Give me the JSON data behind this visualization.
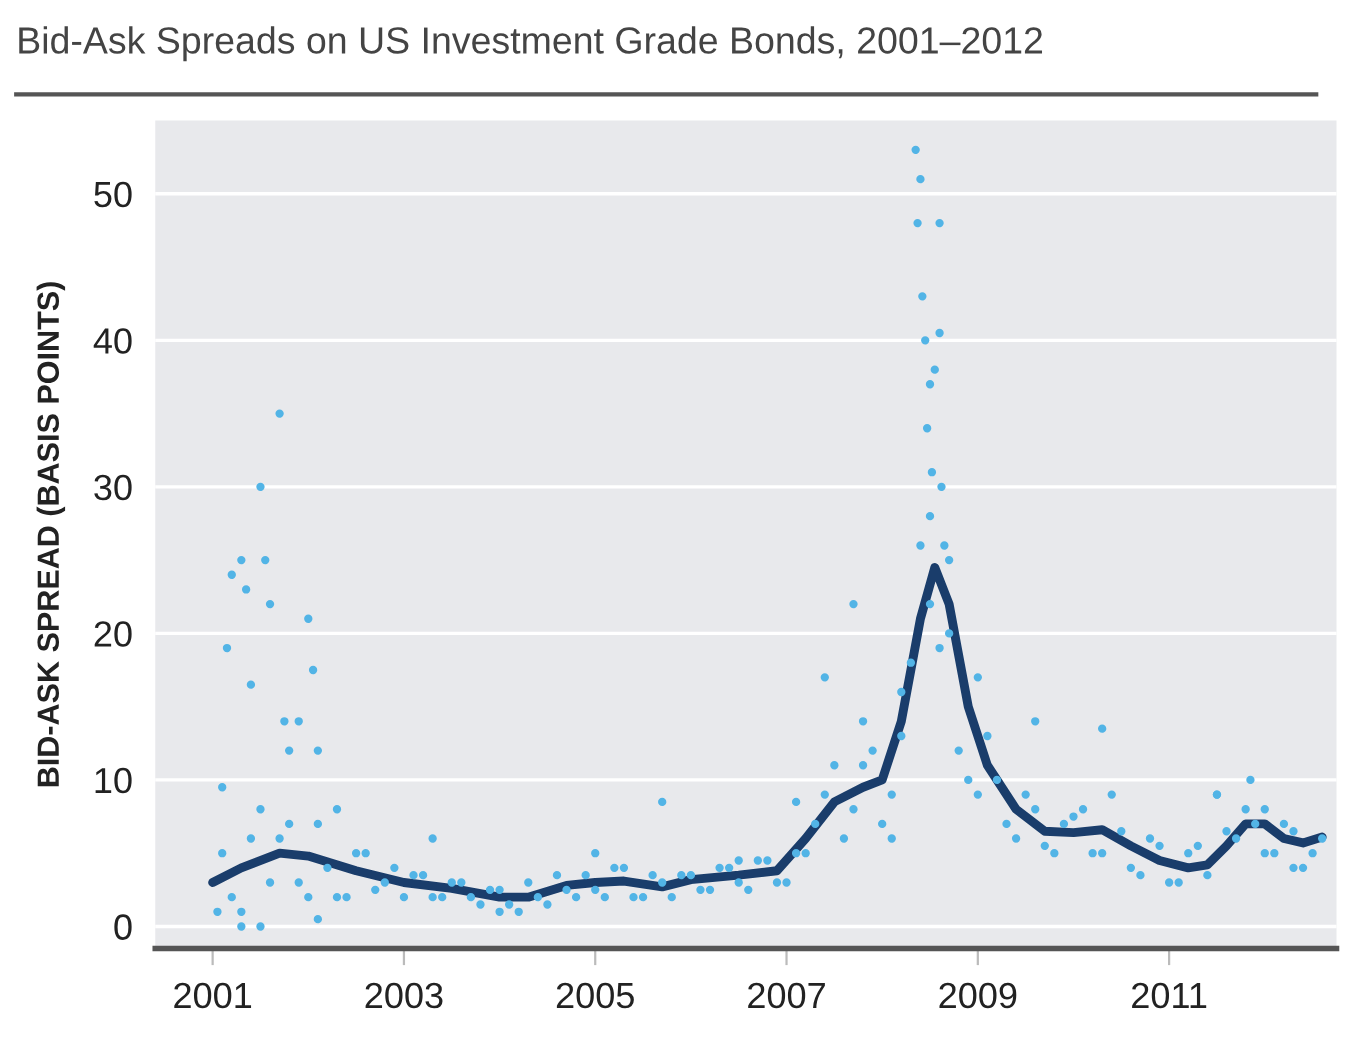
{
  "chart_data": {
    "type": "scatter",
    "title": "Bid-Ask Spreads on US Investment Grade Bonds, 2001–2012",
    "ylabel": "BID-ASK SPREAD (BASIS POINTS)",
    "xlim": [
      2000.4,
      2012.75
    ],
    "ylim": [
      -1.5,
      55
    ],
    "xticks": [
      2001,
      2003,
      2005,
      2007,
      2009,
      2011
    ],
    "yticks": [
      0,
      10,
      20,
      30,
      40,
      50
    ],
    "grid": "y",
    "series": [
      {
        "color": "#52b4e6",
        "marker": "circle",
        "x": [
          2001.1,
          2001.15,
          2001.2,
          2001.3,
          2001.35,
          2001.4,
          2001.5,
          2001.55,
          2001.6,
          2001.7,
          2001.75,
          2001.8,
          2001.9,
          2002.0,
          2002.05,
          2002.1,
          2002.3,
          2003.3,
          2005.0,
          2005.7,
          2006.5,
          2007.1,
          2007.4,
          2007.7,
          2007.8,
          2008.35,
          2008.4,
          2008.37,
          2008.6,
          2008.42,
          2008.45,
          2008.55,
          2008.6,
          2008.5,
          2008.47,
          2008.52,
          2008.62,
          2008.5,
          2008.65,
          2008.7,
          2009.6,
          2010.3,
          2011.5,
          2011.85,
          2012.0,
          2008.2,
          2008.1,
          2009.0,
          2001.3,
          2001.5,
          2002.1,
          2004.0,
          2012.3,
          2001.05,
          2001.2,
          2001.4,
          2001.6,
          2001.8,
          2002.0,
          2002.2,
          2002.4,
          2002.6,
          2002.8,
          2003.0,
          2003.2,
          2003.4,
          2003.6,
          2003.8,
          2004.0,
          2004.2,
          2004.4,
          2004.6,
          2004.8,
          2005.0,
          2005.2,
          2005.4,
          2005.6,
          2005.8,
          2006.0,
          2006.2,
          2006.4,
          2006.6,
          2006.8,
          2007.0,
          2007.2,
          2007.4,
          2007.6,
          2007.8,
          2008.0,
          2008.2,
          2008.4,
          2008.6,
          2008.8,
          2009.0,
          2009.2,
          2009.4,
          2009.6,
          2009.8,
          2010.0,
          2010.2,
          2010.4,
          2010.6,
          2010.8,
          2011.0,
          2011.2,
          2011.4,
          2011.6,
          2011.8,
          2012.0,
          2012.2,
          2012.4,
          2012.6,
          2001.1,
          2001.3,
          2001.5,
          2001.7,
          2001.9,
          2002.1,
          2002.3,
          2002.5,
          2002.7,
          2002.9,
          2003.1,
          2003.3,
          2003.5,
          2003.7,
          2003.9,
          2004.1,
          2004.3,
          2004.5,
          2004.7,
          2004.9,
          2005.1,
          2005.3,
          2005.5,
          2005.7,
          2005.9,
          2006.1,
          2006.3,
          2006.5,
          2006.7,
          2006.9,
          2007.1,
          2007.3,
          2007.5,
          2007.7,
          2007.9,
          2008.1,
          2008.3,
          2008.5,
          2008.7,
          2008.9,
          2009.1,
          2009.3,
          2009.5,
          2009.7,
          2009.9,
          2010.1,
          2010.3,
          2010.5,
          2010.7,
          2010.9,
          2011.1,
          2011.3,
          2011.5,
          2011.7,
          2011.9,
          2012.1,
          2012.3,
          2012.5
        ],
        "values": [
          9.5,
          19,
          24,
          25,
          23,
          16.5,
          30,
          25,
          22,
          35,
          14,
          12,
          14,
          21,
          17.5,
          12,
          8,
          6,
          5,
          8.5,
          4.5,
          8.5,
          17,
          22,
          14,
          53,
          51,
          48,
          48,
          43,
          40,
          38,
          40.5,
          37,
          34,
          31,
          30,
          28,
          26,
          25,
          14,
          13.5,
          9,
          10,
          8,
          13,
          6,
          17,
          0,
          0,
          0.5,
          1,
          4,
          1,
          2,
          6,
          3,
          7,
          2,
          4,
          2,
          5,
          3,
          2,
          3.5,
          2,
          3,
          1.5,
          2.5,
          1,
          2,
          3.5,
          2,
          2.5,
          4,
          2,
          3.5,
          2,
          3.5,
          2.5,
          4,
          2.5,
          4.5,
          3,
          5,
          9,
          6,
          11,
          7,
          16,
          26,
          19,
          12,
          9,
          10,
          6,
          8,
          5,
          7.5,
          5,
          9,
          4,
          6,
          3,
          5,
          3.5,
          6.5,
          8,
          5,
          7,
          4,
          6,
          5,
          1,
          8,
          6,
          3,
          7,
          2,
          5,
          2.5,
          4,
          3.5,
          2,
          3,
          2,
          2.5,
          1.5,
          3,
          1.5,
          2.5,
          3.5,
          2,
          4,
          2,
          3,
          3.5,
          2.5,
          4,
          3,
          4.5,
          3,
          5,
          7,
          11,
          8,
          12,
          9,
          18,
          22,
          20,
          10,
          13,
          7,
          9,
          5.5,
          7,
          8,
          5,
          6.5,
          3.5,
          5.5,
          3,
          5.5,
          9,
          6,
          7,
          5,
          6.5,
          5
        ]
      },
      {
        "type": "line",
        "color": "#1a3d6b",
        "marker": "none",
        "line_style": "solid",
        "x": [
          2001.0,
          2001.3,
          2001.7,
          2002.0,
          2002.5,
          2003.0,
          2003.5,
          2004.0,
          2004.3,
          2004.7,
          2005.0,
          2005.3,
          2005.7,
          2006.0,
          2006.5,
          2006.9,
          2007.2,
          2007.5,
          2007.8,
          2008.0,
          2008.2,
          2008.4,
          2008.55,
          2008.7,
          2008.9,
          2009.1,
          2009.4,
          2009.7,
          2010.0,
          2010.3,
          2010.6,
          2010.9,
          2011.2,
          2011.4,
          2011.6,
          2011.8,
          2012.0,
          2012.2,
          2012.4,
          2012.6
        ],
        "values": [
          3,
          4,
          5,
          4.8,
          3.8,
          3,
          2.6,
          2.0,
          2.0,
          2.8,
          3.0,
          3.1,
          2.7,
          3.2,
          3.5,
          3.8,
          6,
          8.5,
          9.5,
          10,
          14,
          21,
          24.5,
          22,
          15,
          11,
          8,
          6.5,
          6.4,
          6.6,
          5.5,
          4.5,
          4.0,
          4.2,
          5.5,
          7,
          7,
          6,
          5.7,
          6.1
        ]
      }
    ]
  }
}
